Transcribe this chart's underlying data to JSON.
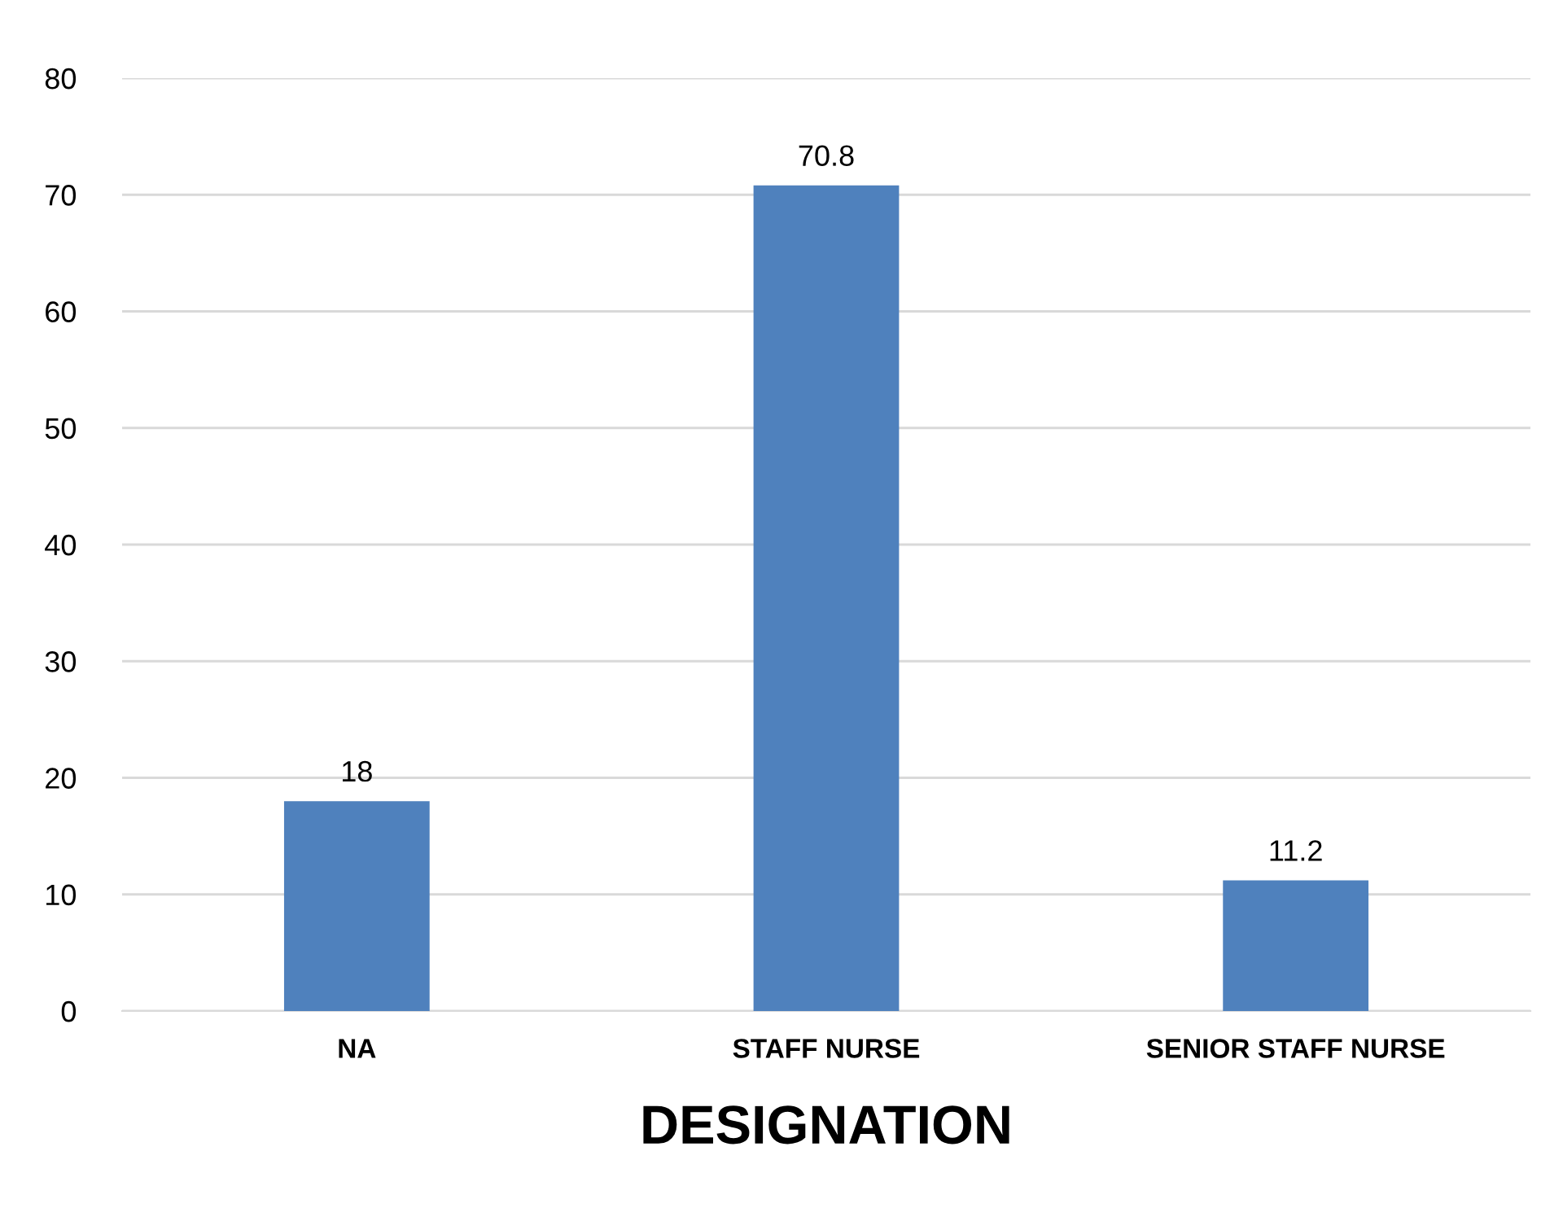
{
  "chart_data": {
    "type": "bar",
    "xlabel": "DESIGNATION",
    "categories": [
      "NA",
      "STAFF NURSE",
      "SENIOR STAFF NURSE"
    ],
    "values": [
      18,
      70.8,
      11.2
    ],
    "color": "#4f81bd",
    "ylim": [
      0,
      80
    ],
    "yticks": [
      0,
      10,
      20,
      30,
      40,
      50,
      60,
      70,
      80
    ],
    "grid": "y",
    "data_labels": true,
    "legend": false
  }
}
